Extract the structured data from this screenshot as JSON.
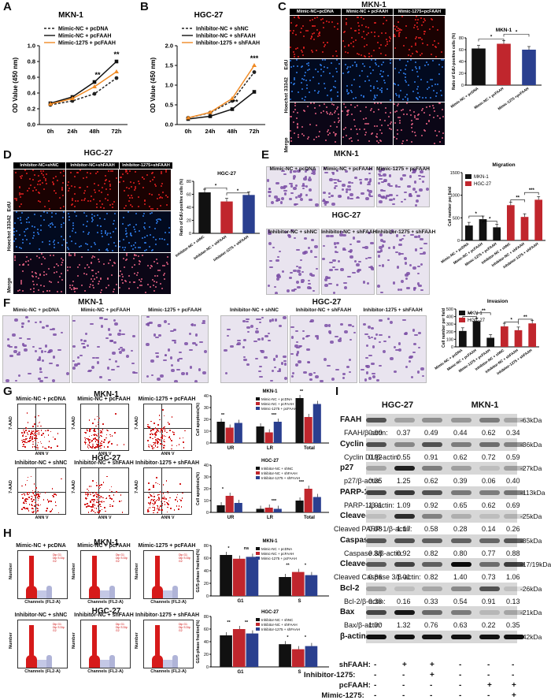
{
  "panel_labels": {
    "A": "A",
    "B": "B",
    "C": "C",
    "D": "D",
    "E": "E",
    "F": "F",
    "G": "G",
    "H": "H",
    "I": "I"
  },
  "A": {
    "title": "MKN-1",
    "ylabel": "OD Value (450 nm)",
    "legend": [
      "Mimic-NC + pcDNA",
      "Mimic-NC + pcFAAH",
      "Mimic-1275 + pcFAAH"
    ],
    "sig": [
      "**",
      "**"
    ],
    "chart_data": {
      "type": "line",
      "categories": [
        "0h",
        "24h",
        "48h",
        "72h"
      ],
      "ylim": [
        0,
        1.0
      ],
      "yticks": [
        "0.0",
        "0.2",
        "0.4",
        "0.6",
        "0.8",
        "1.0"
      ],
      "series": [
        {
          "name": "Mimic-NC + pcDNA",
          "values": [
            0.25,
            0.3,
            0.39,
            0.59
          ],
          "color": "#222",
          "dash": true
        },
        {
          "name": "Mimic-NC + pcFAAH",
          "values": [
            0.27,
            0.35,
            0.54,
            0.8
          ],
          "color": "#111",
          "dash": false
        },
        {
          "name": "Mimic-1275 + pcFAAH",
          "values": [
            0.26,
            0.33,
            0.48,
            0.67
          ],
          "color": "#f08a24",
          "dash": false
        }
      ]
    }
  },
  "B": {
    "title": "HGC-27",
    "ylabel": "OD Value (450 nm)",
    "legend": [
      "Inhibitor-NC + shNC",
      "Inhibitor-NC + shFAAH",
      "Inhibitor-1275 + shFAAH"
    ],
    "sig": [
      "**",
      "***"
    ],
    "chart_data": {
      "type": "line",
      "categories": [
        "0h",
        "24h",
        "48h",
        "72h"
      ],
      "ylim": [
        0,
        2.0
      ],
      "yticks": [
        "0.0",
        "0.5",
        "1.0",
        "1.5",
        "2.0"
      ],
      "series": [
        {
          "name": "Inhibitor-NC + shNC",
          "values": [
            0.17,
            0.3,
            0.6,
            1.33
          ],
          "color": "#222",
          "dash": true
        },
        {
          "name": "Inhibitor-NC + shFAAH",
          "values": [
            0.14,
            0.21,
            0.39,
            0.83
          ],
          "color": "#111",
          "dash": false
        },
        {
          "name": "Inhibitor-1275 + shFAAH",
          "values": [
            0.17,
            0.31,
            0.66,
            1.5
          ],
          "color": "#f08a24",
          "dash": false
        }
      ]
    }
  },
  "C": {
    "title": "MKN-1",
    "cols": [
      "Mimic-NC+pcDNA",
      "Mimic-NC + pcFAAH",
      "Mimic-1275+pcFAAH"
    ],
    "rows": [
      "EdU",
      "Hoechst 33342",
      "Merge"
    ],
    "chart": {
      "title": "MKN-1",
      "ylabel": "Ratio of EdU-positive cells (%)",
      "yticks": [
        "0",
        "20",
        "40",
        "60",
        "80"
      ],
      "categories": [
        "Mimic-NC + pcDNA",
        "Mimic-NC + pcFAAH",
        "Mimic-1275 +pcFAAH"
      ],
      "values": [
        62,
        70,
        60
      ],
      "colors": [
        "#111",
        "#c0262d",
        "#2a3f8f"
      ],
      "sig": [
        "*",
        "*"
      ]
    }
  },
  "D": {
    "title": "HGC-27",
    "cols": [
      "Inhibitor-NC+shNC",
      "Inhibitor-NC+shFAAH",
      "Inhibitor-1275+shFAAH"
    ],
    "rows": [
      "EdU",
      "Hoechst 33342",
      "Merge"
    ],
    "chart": {
      "title": "HGC-27",
      "ylabel": "Ratio of EdU-positive cells (%)",
      "yticks": [
        "0",
        "20",
        "40",
        "60",
        "80"
      ],
      "categories": [
        "Inhibitor-NC + shNC",
        "Inhibitor-NC + shFAAH",
        "Inhibitor-1275 + shFAAH"
      ],
      "values": [
        63,
        49,
        59
      ],
      "colors": [
        "#111",
        "#c0262d",
        "#2a3f8f"
      ],
      "sig": [
        "*",
        "*"
      ]
    }
  },
  "E": {
    "top_title": "MKN-1",
    "bottom_title": "HGC-27",
    "top_cols": [
      "Mimic-NC + pcDNA",
      "Mimic-NC + pcFAAH",
      "Mimic-1275 + pcFAAH"
    ],
    "bottom_cols": [
      "Inhibitor-NC + shNC",
      "Inhibitor-NC + shFAAH",
      "Inhibitor-1275 + shFAAH"
    ],
    "chart": {
      "title": "Migration",
      "ylabel": "Cell number per field",
      "yticks": [
        "0",
        "500",
        "1000",
        "1500"
      ],
      "legend": [
        "MKN-1",
        "HGC-27"
      ],
      "legend_colors": [
        "#111",
        "#c0262d"
      ],
      "categories": [
        "Mimic-NC + pcDNA",
        "Mimic-NC + pcFAAH",
        "Mimic-1275 + pcFAAH",
        "Inhibitor-NC + shNC",
        "Inhibitor-NC + shFAAH",
        "Inhibitor-1275 + shFAAH"
      ],
      "values": [
        330,
        470,
        290,
        780,
        520,
        900
      ],
      "colors": [
        "#111",
        "#111",
        "#111",
        "#c0262d",
        "#c0262d",
        "#c0262d"
      ],
      "sig": [
        "*",
        "*",
        "**",
        "***"
      ]
    }
  },
  "F": {
    "left_title": "MKN-1",
    "right_title": "HGC-27",
    "left_cols": [
      "Mimic-NC + pcDNA",
      "Mimic-NC + pcFAAH",
      "Mimic-1275 + pcFAAH"
    ],
    "right_cols": [
      "Inhibitor-NC + shNC",
      "Inhibitor-NC + shFAAH",
      "Inhibitor-1275 + shFAAH"
    ],
    "chart": {
      "title": "Invasion",
      "ylabel": "Cell number per field",
      "yticks": [
        "0",
        "100",
        "200",
        "300",
        "400",
        "500"
      ],
      "legend": [
        "MKN-1",
        "HGC-27"
      ],
      "legend_colors": [
        "#111",
        "#c0262d"
      ],
      "categories": [
        "Mimic-NC + pcDNA",
        "Mimic-NC + pcFAAH",
        "Mimic-1275 + pcFAAH",
        "Inhibitor-NC + shNC",
        "Inhibitor-NC + shFAAH",
        "Inhibitor-1275 + shFAAH"
      ],
      "values": [
        210,
        340,
        120,
        270,
        220,
        310
      ],
      "colors": [
        "#111",
        "#111",
        "#111",
        "#c0262d",
        "#c0262d",
        "#c0262d"
      ],
      "sig": [
        "**",
        "**",
        "*",
        "**"
      ]
    }
  },
  "G": {
    "top_title": "MKN-1",
    "bottom_title": "HGC-27",
    "top_cols": [
      "Mimic-NC + pcDNA",
      "Mimic-NC + pcFAAH",
      "Mimic-1275 + pcFAAH"
    ],
    "bottom_cols": [
      "Inhibitor-NC + shNC",
      "Inhibitor-NC + shFAAH",
      "Inhibitor-1275 + shFAAH"
    ],
    "axis_y": "7-AAD",
    "axis_x": "ANN V",
    "chart_top": {
      "title": "MKN-1",
      "ylabel": "Cell apoptosis(%)",
      "yticks": [
        "0",
        "10",
        "20",
        "30",
        "40"
      ],
      "categories": [
        "UR",
        "LR",
        "Total"
      ],
      "legend": [
        "Mimic-NC + pcDNA",
        "Mimic-NC + pcFAAH",
        "Mimic-1275 + pcFAAH"
      ],
      "series_colors": [
        "#111",
        "#c0262d",
        "#2a3f8f"
      ],
      "values": [
        [
          18,
          14,
          38
        ],
        [
          13,
          9,
          22
        ],
        [
          17,
          18,
          33
        ]
      ],
      "sig": [
        "**",
        "***",
        "**"
      ]
    },
    "chart_bottom": {
      "title": "HGC-27",
      "ylabel": "Cell apoptosis(%)",
      "yticks": [
        "0",
        "10",
        "20",
        "30",
        "40"
      ],
      "categories": [
        "UR",
        "LR",
        "Total"
      ],
      "legend": [
        "Inhibitor-NC + shNC",
        "Inhibitor-NC + shFAAH",
        "Inhibitor-1275 + shFAAH"
      ],
      "series_colors": [
        "#111",
        "#c0262d",
        "#2a3f8f"
      ],
      "values": [
        [
          6,
          3,
          10
        ],
        [
          14,
          4,
          20
        ],
        [
          8,
          3,
          13
        ]
      ],
      "sig": [
        "*",
        "***",
        "***"
      ]
    }
  },
  "H": {
    "top_title": "MKN-1",
    "bottom_title": "HGC-27",
    "top_cols": [
      "Mimic-NC + pcDNA",
      "Mimic-NC + pcFAAH",
      "Mimic-1275 + pcFAAH"
    ],
    "bottom_cols": [
      "Inhibitor-NC + shNC",
      "Inhibitor-NC + shFAAH",
      "Inhibitor-1275 + shFAAH"
    ],
    "axis_y": "Number",
    "axis_x": "Channels (FL2-A)",
    "chart_top": {
      "title": "MKN-1",
      "ylabel": "G1/S-phase fraction(%)",
      "yticks": [
        "0",
        "20",
        "40",
        "60",
        "80"
      ],
      "categories": [
        "G1",
        "S"
      ],
      "legend": [
        "Mimic-NC + pcDNA",
        "Mimic-NC + pcFAAH",
        "Mimic-1275 + pcFAAH"
      ],
      "series_colors": [
        "#111",
        "#c0262d",
        "#2a3f8f"
      ],
      "values": [
        [
          65,
          30
        ],
        [
          59,
          38
        ],
        [
          62,
          33
        ]
      ],
      "sig": [
        "*",
        "ns",
        "**",
        "*"
      ]
    },
    "chart_bottom": {
      "title": "HGC-27",
      "ylabel": "G1/S-phase fraction(%)",
      "yticks": [
        "0",
        "20",
        "40",
        "60",
        "80"
      ],
      "categories": [
        "G1",
        "S"
      ],
      "legend": [
        "Inhibitor-NC + shNC",
        "Inhibitor-NC + shFAAH",
        "Inhibitor-1275 + shFAAH"
      ],
      "series_colors": [
        "#111",
        "#c0262d",
        "#2a3f8f"
      ],
      "values": [
        [
          50,
          36
        ],
        [
          60,
          28
        ],
        [
          53,
          33
        ]
      ],
      "sig": [
        "**",
        "**",
        "*",
        "*"
      ]
    }
  },
  "I": {
    "cell_lines": [
      "HGC-27",
      "MKN-1"
    ],
    "blots": [
      {
        "name": "FAAH",
        "ratio_label": "FAAH/β-actin:",
        "ratios": [
          "0.90",
          "0.37",
          "0.49",
          "0.44",
          "0.62",
          "0.34"
        ],
        "kda": "-63kDa"
      },
      {
        "name": "Cyclin D1",
        "ratio_label": "Cyclin D1/β-actin:",
        "ratios": [
          "0.92",
          "0.55",
          "0.91",
          "0.62",
          "0.72",
          "0.59"
        ],
        "kda": "-36kDa"
      },
      {
        "name": "p27",
        "ratio_label": "p27/β-actin:",
        "ratios": [
          "0.35",
          "1.25",
          "0.62",
          "0.39",
          "0.06",
          "0.40"
        ],
        "kda": "-27kDa"
      },
      {
        "name": "PARP-1",
        "ratio_label": "PARP-1/β-actin:",
        "ratios": [
          "1.01",
          "1.09",
          "0.92",
          "0.65",
          "0.62",
          "0.69"
        ],
        "kda": "-113kDa"
      },
      {
        "name": "Cleaved PARP-1",
        "ratio_label": "Cleaved PARP-1/β-actin:",
        "ratios": [
          "0.08",
          "1.17",
          "0.58",
          "0.28",
          "0.14",
          "0.26"
        ],
        "kda": "-25kDa"
      },
      {
        "name": "Caspase 3",
        "ratio_label": "Caspase 3/β-actin:",
        "ratios": [
          "0.88",
          "0.92",
          "0.82",
          "0.80",
          "0.77",
          "0.88"
        ],
        "kda": "-35kDa"
      },
      {
        "name": "Cleaved  caspase 3",
        "ratio_label": "Cleaved Caspase 3/β-actin:",
        "ratios": [
          "0.86",
          "1.01",
          "0.82",
          "1.40",
          "0.73",
          "1.06"
        ],
        "kda": "-17/19kDa"
      },
      {
        "name": "Bcl-2",
        "ratio_label": "Bcl-2/β-actin:",
        "ratios": [
          "0.36",
          "0.16",
          "0.33",
          "0.54",
          "0.91",
          "0.13"
        ],
        "kda": "-26kDa"
      },
      {
        "name": "Bax",
        "ratio_label": "Bax/β-actin:",
        "ratios": [
          "1.00",
          "1.32",
          "0.76",
          "0.63",
          "0.22",
          "0.35"
        ],
        "kda": "-21kDa"
      }
    ],
    "actin": {
      "name": "β-actin",
      "kda": "-42kDa"
    },
    "treatments": [
      {
        "name": "shFAAH:",
        "marks": [
          "-",
          "+",
          "+",
          "-",
          "-",
          "-"
        ]
      },
      {
        "name": "Inhibitor-1275:",
        "marks": [
          "-",
          "-",
          "+",
          "-",
          "-",
          "-"
        ]
      },
      {
        "name": "pcFAAH:",
        "marks": [
          "-",
          "-",
          "-",
          "-",
          "+",
          "+"
        ]
      },
      {
        "name": "Mimic-1275:",
        "marks": [
          "-",
          "-",
          "-",
          "-",
          "-",
          "+"
        ]
      }
    ]
  }
}
